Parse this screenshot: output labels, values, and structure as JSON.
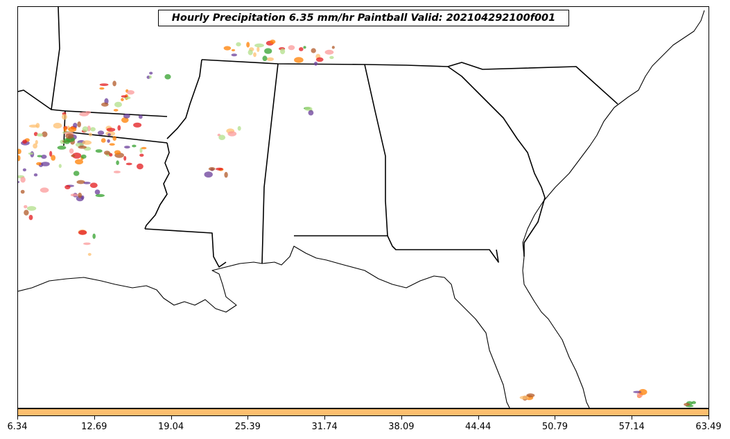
{
  "title": "Hourly Precipitation 6.35 mm/hr Paintball Valid: 202104292100f001",
  "colorbar": {
    "color": "#fdbf6f",
    "tick_labels": [
      "6.34",
      "12.69",
      "19.04",
      "25.39",
      "31.74",
      "38.09",
      "44.44",
      "50.79",
      "57.14",
      "63.49"
    ]
  },
  "colors": {
    "boundary": "#000000",
    "paintball": [
      "#e31a1c",
      "#ff7f00",
      "#33a02c",
      "#6a3d9a",
      "#b15928",
      "#fb9a99",
      "#fdbf6f",
      "#b2df8a"
    ]
  }
}
